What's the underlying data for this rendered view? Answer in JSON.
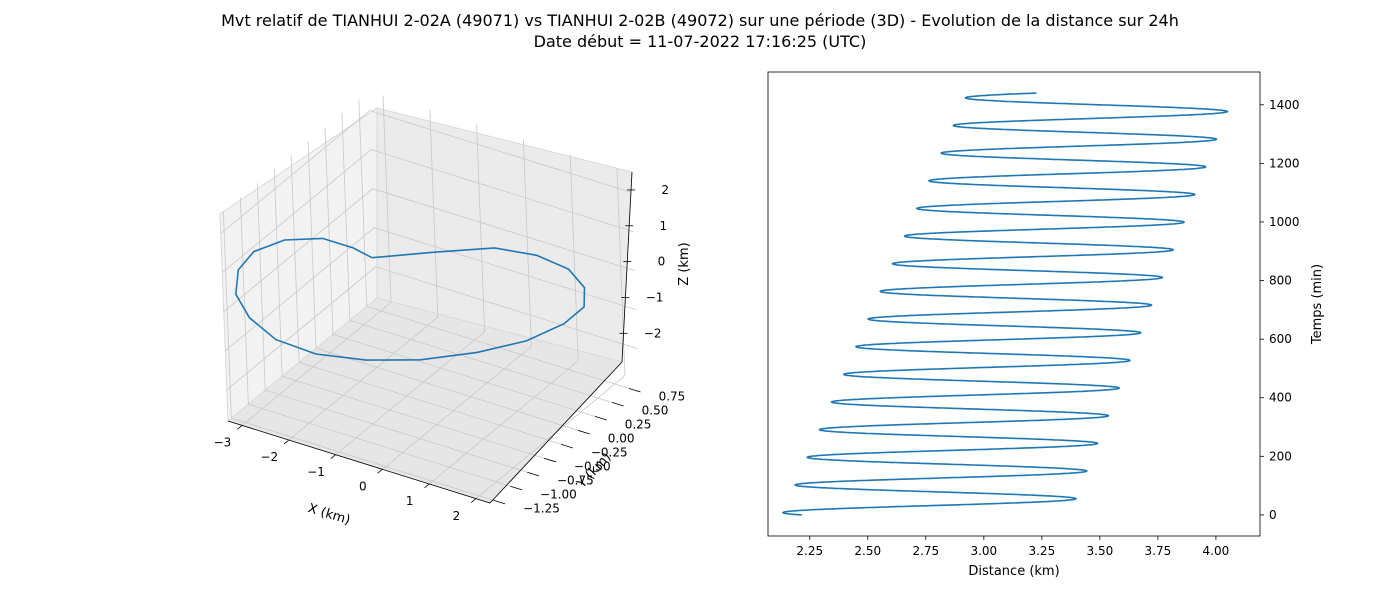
{
  "figure": {
    "title_line1": "Mvt relatif de TIANHUI 2-02A (49071) vs TIANHUI 2-02B (49072) sur une période (3D) - Evolution de la distance sur 24h",
    "title_line2": "Date début = 11-07-2022 17:16:25 (UTC)",
    "line_color": "#1f77b4"
  },
  "chart_data": [
    {
      "type": "line3d",
      "xlabel": "X (km)",
      "ylabel": "Y (km)",
      "zlabel": "Z (km)",
      "xticks": [
        "−3",
        "−2",
        "−1",
        "0",
        "1",
        "2"
      ],
      "yticks": [
        "−1.25",
        "−1.00",
        "−0.75",
        "−0.50",
        "−0.25",
        "0.00",
        "0.25",
        "0.50",
        "0.75"
      ],
      "zticks": [
        "−2",
        "−1",
        "0",
        "1",
        "2"
      ],
      "xlim": [
        -3.3,
        2.3
      ],
      "ylim": [
        -1.3,
        0.9
      ],
      "zlim": [
        -2.8,
        2.5
      ],
      "grid": true,
      "series": [
        {
          "points": [
            [
              -0.2,
              -1.2,
              2.4
            ],
            [
              0.55,
              -0.8,
              2.25
            ],
            [
              1.1,
              -0.3,
              1.85
            ],
            [
              1.4,
              0.1,
              1.2
            ],
            [
              1.55,
              0.45,
              0.4
            ],
            [
              1.5,
              0.7,
              -0.45
            ],
            [
              1.25,
              0.85,
              -1.25
            ],
            [
              0.8,
              0.85,
              -1.85
            ],
            [
              0.2,
              0.7,
              -2.3
            ],
            [
              -0.5,
              0.45,
              -2.5
            ],
            [
              -1.2,
              0.1,
              -2.45
            ],
            [
              -1.85,
              -0.25,
              -2.2
            ],
            [
              -2.4,
              -0.6,
              -1.75
            ],
            [
              -2.8,
              -0.9,
              -1.1
            ],
            [
              -3.05,
              -1.1,
              -0.35
            ],
            [
              -3.1,
              -1.25,
              0.45
            ],
            [
              -2.95,
              -1.3,
              1.2
            ],
            [
              -2.6,
              -1.3,
              1.8
            ],
            [
              -2.0,
              -1.25,
              2.25
            ],
            [
              -1.25,
              -1.2,
              2.5
            ],
            [
              -0.6,
              -1.2,
              2.5
            ],
            [
              -0.2,
              -1.2,
              2.4
            ]
          ]
        }
      ]
    },
    {
      "type": "line",
      "xlabel": "Distance (km)",
      "ylabel": "Temps (min)",
      "xticks": [
        "2.25",
        "2.50",
        "2.75",
        "3.00",
        "3.25",
        "3.50",
        "3.75",
        "4.00"
      ],
      "yticks": [
        "0",
        "200",
        "400",
        "600",
        "800",
        "1000",
        "1200",
        "1400"
      ],
      "xlim": [
        2.07,
        4.19
      ],
      "ylim": [
        -72,
        1512
      ],
      "yaxis_side": "right",
      "series": [
        {
          "period_min": 94.4,
          "t_end_min": 1440,
          "oscillation": {
            "start_distance": 2.48,
            "min_distance": [
              2.13,
              2.93
            ],
            "max_distance": [
              3.37,
              4.08
            ],
            "first_min_time": 0
          }
        }
      ]
    }
  ]
}
